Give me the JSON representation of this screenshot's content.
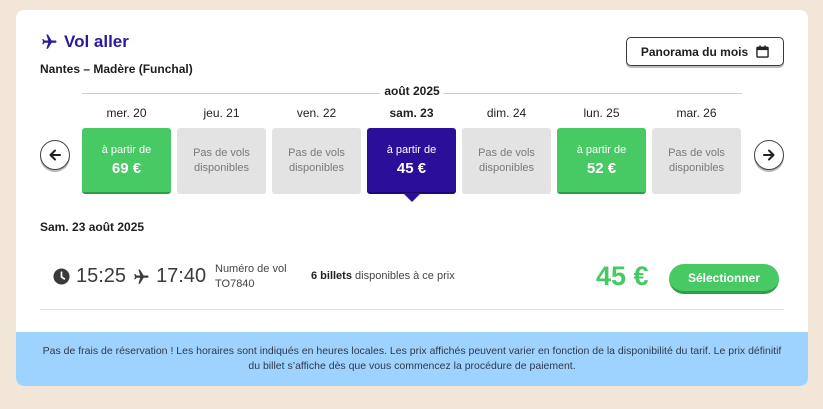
{
  "header": {
    "title": "Vol aller",
    "route": "Nantes – Madère (Funchal)",
    "panorama_label": "Panorama du mois"
  },
  "calendar": {
    "month_label": "août 2025",
    "days": [
      {
        "label": "mer. 20",
        "state": "available",
        "from_label": "à partir de",
        "price": "69 €"
      },
      {
        "label": "jeu. 21",
        "state": "none",
        "no_flight_label": "Pas de vols disponibles"
      },
      {
        "label": "ven. 22",
        "state": "none",
        "no_flight_label": "Pas de vols disponibles"
      },
      {
        "label": "sam. 23",
        "state": "selected",
        "from_label": "à partir de",
        "price": "45 €"
      },
      {
        "label": "dim. 24",
        "state": "none",
        "no_flight_label": "Pas de vols disponibles"
      },
      {
        "label": "lun. 25",
        "state": "available",
        "from_label": "à partir de",
        "price": "52 €"
      },
      {
        "label": "mar. 26",
        "state": "none",
        "no_flight_label": "Pas de vols disponibles"
      }
    ]
  },
  "selected_date": "Sam. 23 août 2025",
  "flight": {
    "depart": "15:25",
    "arrive": "17:40",
    "number_label": "Numéro de vol",
    "number": "TO7840",
    "seats_bold": "6 billets",
    "seats_rest": " disponibles à ce prix",
    "price": "45 €",
    "select_label": "Sélectionner"
  },
  "notice": "Pas de frais de réservation ! Les horaires sont indiqués en heures locales. Les prix affichés peuvent varier en fonction de la disponibilité du tarif. Le prix définitif du billet s’affiche dès que vous commencez la procédure de paiement.",
  "colors": {
    "brand": "#2b0f9a",
    "available": "#47c964",
    "notice_bg": "#9fd3ff"
  },
  "icons": [
    "plane-icon",
    "calendar-icon",
    "arrow-left-icon",
    "arrow-right-icon",
    "clock-icon"
  ]
}
